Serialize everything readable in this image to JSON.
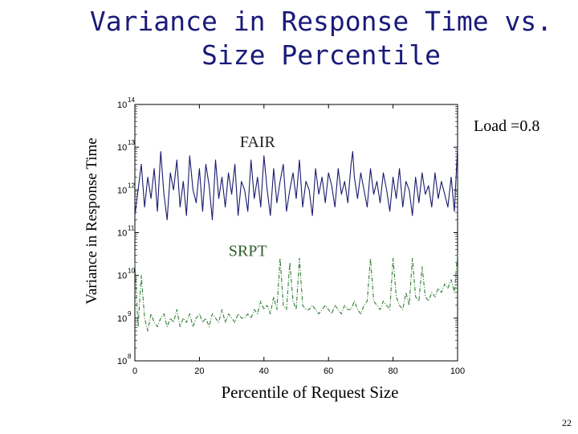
{
  "page": {
    "title_line1": "Variance in Response Time vs.",
    "title_line2": "Size Percentile",
    "slide_number": "22"
  },
  "chart_data": {
    "type": "line",
    "title": "Variance in Response Time vs. Size Percentile",
    "xlabel": "Percentile of Request Size",
    "ylabel": "Variance in Response Time",
    "xlim": [
      0,
      100
    ],
    "yscale": "log",
    "ylim_exponent": [
      8,
      14
    ],
    "x_ticks": [
      "0",
      "20",
      "40",
      "60",
      "80",
      "100"
    ],
    "y_ticks": [
      {
        "base": "10",
        "exp": "14"
      },
      {
        "base": "10",
        "exp": "13"
      },
      {
        "base": "10",
        "exp": "12"
      },
      {
        "base": "10",
        "exp": "11"
      },
      {
        "base": "10",
        "exp": "10"
      },
      {
        "base": "10",
        "exp": "9"
      },
      {
        "base": "10",
        "exp": "8"
      }
    ],
    "grid": false,
    "annotations": {
      "load": "Load =0.8"
    },
    "series": [
      {
        "name": "FAIR",
        "color": "#1a1a6e",
        "style": "solid",
        "label_position": [
          38,
          13.0
        ],
        "x": [
          0,
          1,
          2,
          3,
          4,
          5,
          6,
          7,
          8,
          9,
          10,
          11,
          12,
          13,
          14,
          15,
          16,
          17,
          18,
          19,
          20,
          21,
          22,
          23,
          24,
          25,
          26,
          27,
          28,
          29,
          30,
          31,
          32,
          33,
          34,
          35,
          36,
          37,
          38,
          39,
          40,
          41,
          42,
          43,
          44,
          45,
          46,
          47,
          48,
          49,
          50,
          51,
          52,
          53,
          54,
          55,
          56,
          57,
          58,
          59,
          60,
          61,
          62,
          63,
          64,
          65,
          66,
          67,
          67.5,
          68,
          69,
          70,
          71,
          72,
          73,
          74,
          75,
          76,
          77,
          78,
          79,
          80,
          81,
          82,
          83,
          84,
          85,
          86,
          87,
          88,
          89,
          90,
          91,
          92,
          93,
          94,
          95,
          96,
          97,
          98,
          99,
          100
        ],
        "log10_values": [
          11.4,
          12.0,
          12.6,
          11.6,
          12.3,
          11.8,
          12.5,
          11.5,
          12.9,
          11.9,
          11.3,
          12.4,
          12.0,
          12.7,
          11.6,
          12.2,
          11.4,
          12.8,
          12.0,
          11.7,
          12.5,
          11.5,
          12.6,
          12.1,
          11.3,
          12.7,
          11.8,
          12.3,
          11.6,
          12.4,
          11.9,
          12.6,
          11.4,
          12.2,
          12.0,
          11.5,
          12.7,
          11.8,
          12.3,
          11.6,
          12.8,
          12.0,
          11.4,
          12.5,
          11.7,
          12.2,
          12.6,
          11.5,
          12.0,
          12.4,
          11.8,
          12.7,
          11.6,
          12.2,
          12.0,
          11.4,
          12.5,
          11.9,
          12.3,
          11.7,
          12.4,
          12.1,
          11.6,
          12.5,
          11.9,
          12.2,
          11.7,
          12.6,
          12.9,
          12.3,
          11.8,
          12.4,
          12.0,
          11.6,
          12.5,
          11.9,
          12.2,
          11.7,
          12.4,
          12.0,
          11.5,
          12.3,
          11.8,
          12.5,
          11.6,
          12.2,
          12.0,
          11.4,
          12.3,
          11.7,
          12.4,
          11.9,
          12.1,
          11.6,
          12.4,
          11.8,
          12.2,
          11.9,
          11.6,
          12.3,
          11.5,
          13.0
        ]
      },
      {
        "name": "SRPT",
        "color": "#2e7d32",
        "style": "dashdot",
        "label_position": [
          35,
          10.45
        ],
        "x": [
          0,
          1,
          2,
          3,
          4,
          5,
          6,
          7,
          8,
          9,
          10,
          11,
          12,
          13,
          14,
          15,
          16,
          17,
          18,
          19,
          20,
          21,
          22,
          23,
          24,
          25,
          26,
          27,
          28,
          29,
          30,
          31,
          32,
          33,
          34,
          35,
          36,
          37,
          38,
          39,
          40,
          41,
          42,
          43,
          44,
          45,
          46,
          47,
          48,
          49,
          50,
          51,
          52,
          53,
          54,
          55,
          56,
          57,
          58,
          59,
          60,
          61,
          62,
          63,
          64,
          65,
          66,
          67,
          68,
          69,
          70,
          71,
          72,
          73,
          74,
          75,
          76,
          77,
          78,
          79,
          80,
          81,
          82,
          83,
          84,
          85,
          86,
          87,
          88,
          89,
          90,
          91,
          92,
          93,
          94,
          95,
          96,
          97,
          98,
          99,
          100
        ],
        "log10_values": [
          10.3,
          8.8,
          10.0,
          9.0,
          8.7,
          9.1,
          8.9,
          8.8,
          9.0,
          9.1,
          8.8,
          9.0,
          8.9,
          9.2,
          8.8,
          9.0,
          8.9,
          9.1,
          8.8,
          9.0,
          9.1,
          8.9,
          9.0,
          8.8,
          9.1,
          9.0,
          8.9,
          9.2,
          8.9,
          9.1,
          9.0,
          8.9,
          9.1,
          9.0,
          9.0,
          9.1,
          9.0,
          9.2,
          9.1,
          9.4,
          9.2,
          9.3,
          9.1,
          9.5,
          9.2,
          10.4,
          9.3,
          9.2,
          10.3,
          9.4,
          9.2,
          10.4,
          9.3,
          9.2,
          9.2,
          9.3,
          9.2,
          9.1,
          9.2,
          9.3,
          9.2,
          9.1,
          9.3,
          9.2,
          9.1,
          9.3,
          9.2,
          9.2,
          9.4,
          9.2,
          9.1,
          9.3,
          9.4,
          10.4,
          9.4,
          9.3,
          9.2,
          9.4,
          9.3,
          9.2,
          10.4,
          9.5,
          9.3,
          9.2,
          9.6,
          9.3,
          10.4,
          9.5,
          9.4,
          10.2,
          9.5,
          9.4,
          9.6,
          9.5,
          9.7,
          9.6,
          9.8,
          9.7,
          9.9,
          9.6,
          10.5
        ]
      }
    ]
  }
}
